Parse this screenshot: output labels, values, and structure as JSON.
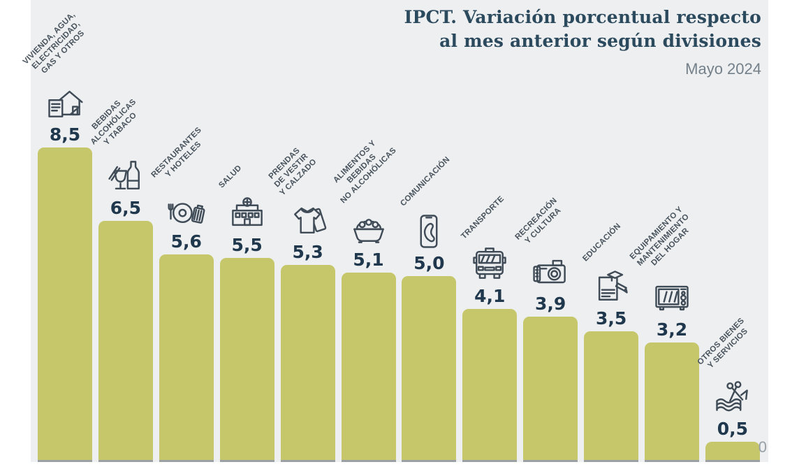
{
  "header": {
    "title_line1": "IPCT. Variación porcentual respecto",
    "title_line2": "al mes anterior según divisiones",
    "subtitle": "Mayo 2024"
  },
  "chart_data": {
    "type": "bar",
    "title": "IPCT. Variación porcentual respecto al mes anterior según divisiones",
    "subtitle": "Mayo 2024",
    "xlabel": "",
    "ylabel": "",
    "unit": "%",
    "ylim": [
      0,
      9
    ],
    "grid": false,
    "legend": false,
    "decimal_separator": ",",
    "baseline_label": "0",
    "bar_color": "#c6c76b",
    "background_color": "#eeeff0",
    "categories": [
      "VIVIENDA, AGUA, ELECTRICIDAD, GAS Y OTROS",
      "BEBIDAS ALCOHÓLICAS Y TABACO",
      "RESTAURANTES Y HOTELES",
      "SALUD",
      "PRENDAS DE VESTIR Y CALZADO",
      "ALIMENTOS Y BEBIDAS NO ALCOHÓLICAS",
      "COMUNICACIÓN",
      "TRANSPORTE",
      "RECREACIÓN Y CULTURA",
      "EDUCACIÓN",
      "EQUIPAMIENTO Y MANTENIMIENTO DEL HOGAR",
      "OTROS BIENES Y SERVICIOS"
    ],
    "values": [
      8.5,
      6.5,
      5.6,
      5.5,
      5.3,
      5.1,
      5.0,
      4.1,
      3.9,
      3.5,
      3.2,
      0.5
    ],
    "bars": [
      {
        "label_lines": [
          "VIVIENDA, AGUA,",
          "ELECTRICIDAD,",
          "GAS Y OTROS"
        ],
        "value": 8.5,
        "value_label": "8,5",
        "icon": "house-documents-icon"
      },
      {
        "label_lines": [
          "BEBIDAS",
          "ALCOHÓLICAS",
          "Y TABACO"
        ],
        "value": 6.5,
        "value_label": "6,5",
        "icon": "drinks-tobacco-icon"
      },
      {
        "label_lines": [
          "RESTAURANTES",
          "Y HOTELES"
        ],
        "value": 5.6,
        "value_label": "5,6",
        "icon": "restaurant-hotel-icon"
      },
      {
        "label_lines": [
          "SALUD"
        ],
        "value": 5.5,
        "value_label": "5,5",
        "icon": "hospital-icon"
      },
      {
        "label_lines": [
          "PRENDAS",
          "DE VESTIR",
          "Y CALZADO"
        ],
        "value": 5.3,
        "value_label": "5,3",
        "icon": "clothing-icon"
      },
      {
        "label_lines": [
          "ALIMENTOS Y",
          "BEBIDAS",
          "NO ALCOHÓLICAS"
        ],
        "value": 5.1,
        "value_label": "5,1",
        "icon": "food-basket-icon"
      },
      {
        "label_lines": [
          "COMUNICACIÓN"
        ],
        "value": 5.0,
        "value_label": "5,0",
        "icon": "phone-icon"
      },
      {
        "label_lines": [
          "TRANSPORTE"
        ],
        "value": 4.1,
        "value_label": "4,1",
        "icon": "bus-icon"
      },
      {
        "label_lines": [
          "RECREACIÓN",
          "Y CULTURA"
        ],
        "value": 3.9,
        "value_label": "3,9",
        "icon": "camera-icon"
      },
      {
        "label_lines": [
          "EDUCACIÓN"
        ],
        "value": 3.5,
        "value_label": "3,5",
        "icon": "education-icon"
      },
      {
        "label_lines": [
          "EQUIPAMIENTO Y",
          "MANTENIMIENTO",
          "DEL HOGAR"
        ],
        "value": 3.2,
        "value_label": "3,2",
        "icon": "microwave-icon"
      },
      {
        "label_lines": [
          "OTROS BIENES",
          "Y SERVICIOS"
        ],
        "value": 0.5,
        "value_label": "0,5",
        "icon": "scissors-fabric-icon"
      }
    ]
  }
}
